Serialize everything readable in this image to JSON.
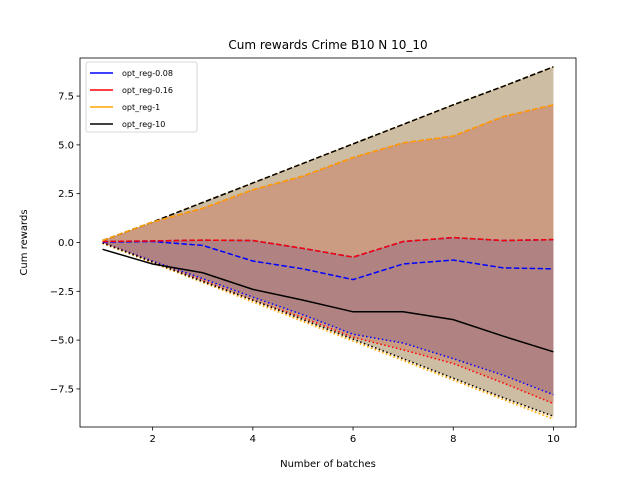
{
  "chart_data": {
    "type": "line",
    "title": "Cum rewards Crime B10 N 10_10",
    "xlabel": "Number of batches",
    "ylabel": "Cum rewards",
    "xlim": [
      0.55,
      10.45
    ],
    "ylim": [
      -9.45,
      9.45
    ],
    "xticks": [
      2,
      4,
      6,
      8,
      10
    ],
    "yticks": [
      -7.5,
      -5.0,
      -2.5,
      0.0,
      2.5,
      5.0,
      7.5
    ],
    "grid": false,
    "legend_position": "top-left",
    "x": [
      1,
      2,
      3,
      4,
      5,
      6,
      7,
      8,
      9,
      10
    ],
    "series": [
      {
        "name": "opt_reg-0.08",
        "color": "#0000ff",
        "mean": [
          0.02,
          0.05,
          -0.15,
          -0.95,
          -1.35,
          -1.9,
          -1.1,
          -0.9,
          -1.3,
          -1.35
        ],
        "upper": [
          0.05,
          0.08,
          0.12,
          0.1,
          -0.3,
          -0.75,
          0.05,
          0.25,
          0.1,
          0.15
        ],
        "lower": [
          0.0,
          -0.95,
          -1.85,
          -2.8,
          -3.7,
          -4.7,
          -5.15,
          -5.95,
          -6.8,
          -7.8
        ]
      },
      {
        "name": "opt_reg-0.16",
        "color": "#ff0000",
        "mean": [
          0.05,
          0.08,
          0.12,
          0.1,
          -0.3,
          -0.75,
          0.05,
          0.25,
          0.1,
          0.15
        ],
        "upper": [
          0.1,
          1.05,
          1.75,
          2.7,
          3.4,
          4.35,
          5.1,
          5.45,
          6.45,
          7.05
        ],
        "lower": [
          0.0,
          -1.0,
          -1.95,
          -2.95,
          -3.85,
          -4.85,
          -5.5,
          -6.2,
          -7.2,
          -8.25
        ]
      },
      {
        "name": "opt_reg-1",
        "color": "#ffa500",
        "mean": [
          0.1,
          1.05,
          1.75,
          2.7,
          3.4,
          4.35,
          5.1,
          5.45,
          6.45,
          7.05
        ],
        "upper": [
          0.1,
          1.05,
          2.05,
          3.05,
          4.05,
          5.05,
          6.05,
          7.05,
          8.0,
          9.0
        ],
        "lower": [
          -0.05,
          -1.05,
          -2.05,
          -3.05,
          -4.05,
          -5.05,
          -6.05,
          -7.05,
          -8.05,
          -9.05
        ]
      },
      {
        "name": "opt_reg-10",
        "color": "#000000",
        "mean": [
          -0.35,
          -1.1,
          -1.55,
          -2.4,
          -2.95,
          -3.55,
          -3.55,
          -3.95,
          -4.8,
          -5.6
        ],
        "upper": [
          0.1,
          1.05,
          2.05,
          3.05,
          4.05,
          5.05,
          6.05,
          7.05,
          8.0,
          9.0
        ],
        "lower": [
          -0.02,
          -1.0,
          -2.0,
          -2.95,
          -3.95,
          -4.95,
          -5.95,
          -6.95,
          -7.95,
          -8.9
        ]
      }
    ]
  }
}
